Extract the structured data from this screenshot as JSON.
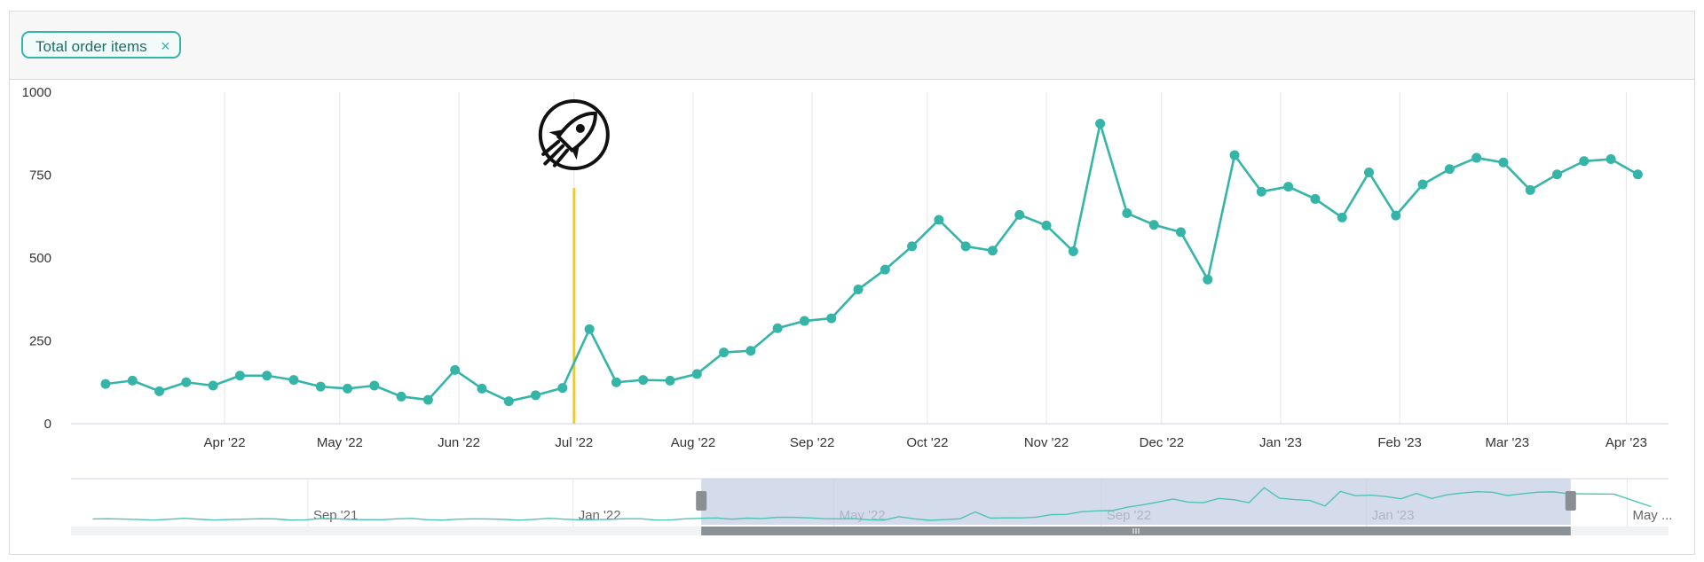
{
  "legend_chip": {
    "label": "Total order items",
    "close": "×"
  },
  "colors": {
    "series": "#35b5a8",
    "marker": "#f5cc1a",
    "navigator_mask": "#c6cfe3",
    "navigator_line": "#4fc3b8",
    "grid": "#e6e6e6"
  },
  "annotation": {
    "icon": "rocket-icon",
    "date": "2022-07-01"
  },
  "chart_data": {
    "type": "line",
    "title": "",
    "xlabel": "",
    "ylabel": "",
    "ylim": [
      0,
      1000
    ],
    "y_ticks": [
      "0",
      "250",
      "500",
      "750",
      "1000"
    ],
    "x_ticks": [
      "Apr '22",
      "May '22",
      "Jun '22",
      "Jul '22",
      "Aug '22",
      "Sep '22",
      "Oct '22",
      "Nov '22",
      "Dec '22",
      "Jan '23",
      "Feb '23",
      "Mar '23",
      "Apr '23"
    ],
    "grid": true,
    "series": [
      {
        "name": "Total order items",
        "x": [
          "2022-03-01",
          "2022-03-08",
          "2022-03-15",
          "2022-03-22",
          "2022-03-29",
          "2022-04-05",
          "2022-04-12",
          "2022-04-19",
          "2022-04-26",
          "2022-05-03",
          "2022-05-10",
          "2022-05-17",
          "2022-05-24",
          "2022-05-31",
          "2022-06-07",
          "2022-06-14",
          "2022-06-21",
          "2022-06-28",
          "2022-07-05",
          "2022-07-12",
          "2022-07-19",
          "2022-07-26",
          "2022-08-02",
          "2022-08-09",
          "2022-08-16",
          "2022-08-23",
          "2022-08-30",
          "2022-09-06",
          "2022-09-13",
          "2022-09-20",
          "2022-09-27",
          "2022-10-04",
          "2022-10-11",
          "2022-10-18",
          "2022-10-25",
          "2022-11-01",
          "2022-11-08",
          "2022-11-15",
          "2022-11-22",
          "2022-11-29",
          "2022-12-06",
          "2022-12-13",
          "2022-12-20",
          "2022-12-27",
          "2023-01-03",
          "2023-01-10",
          "2023-01-17",
          "2023-01-24",
          "2023-01-31",
          "2023-02-07",
          "2023-02-14",
          "2023-02-21",
          "2023-02-28",
          "2023-03-07",
          "2023-03-14",
          "2023-03-21",
          "2023-03-28",
          "2023-04-04"
        ],
        "values": [
          120,
          130,
          98,
          125,
          115,
          145,
          145,
          132,
          112,
          106,
          115,
          82,
          72,
          162,
          106,
          68,
          86,
          108,
          285,
          125,
          132,
          130,
          150,
          215,
          220,
          288,
          310,
          318,
          405,
          465,
          535,
          615,
          535,
          522,
          630,
          598,
          520,
          905,
          635,
          600,
          578,
          435,
          810,
          700,
          715,
          678,
          622,
          758,
          628,
          722,
          768,
          802,
          788,
          705,
          752,
          792,
          798,
          752
        ]
      }
    ],
    "navigator": {
      "x_ticks": [
        "Sep '21",
        "Jan '22",
        "May '22",
        "Sep '22",
        "Jan '23",
        "May ..."
      ],
      "selected_range": [
        "2022-03-01",
        "2023-04-05"
      ]
    }
  }
}
